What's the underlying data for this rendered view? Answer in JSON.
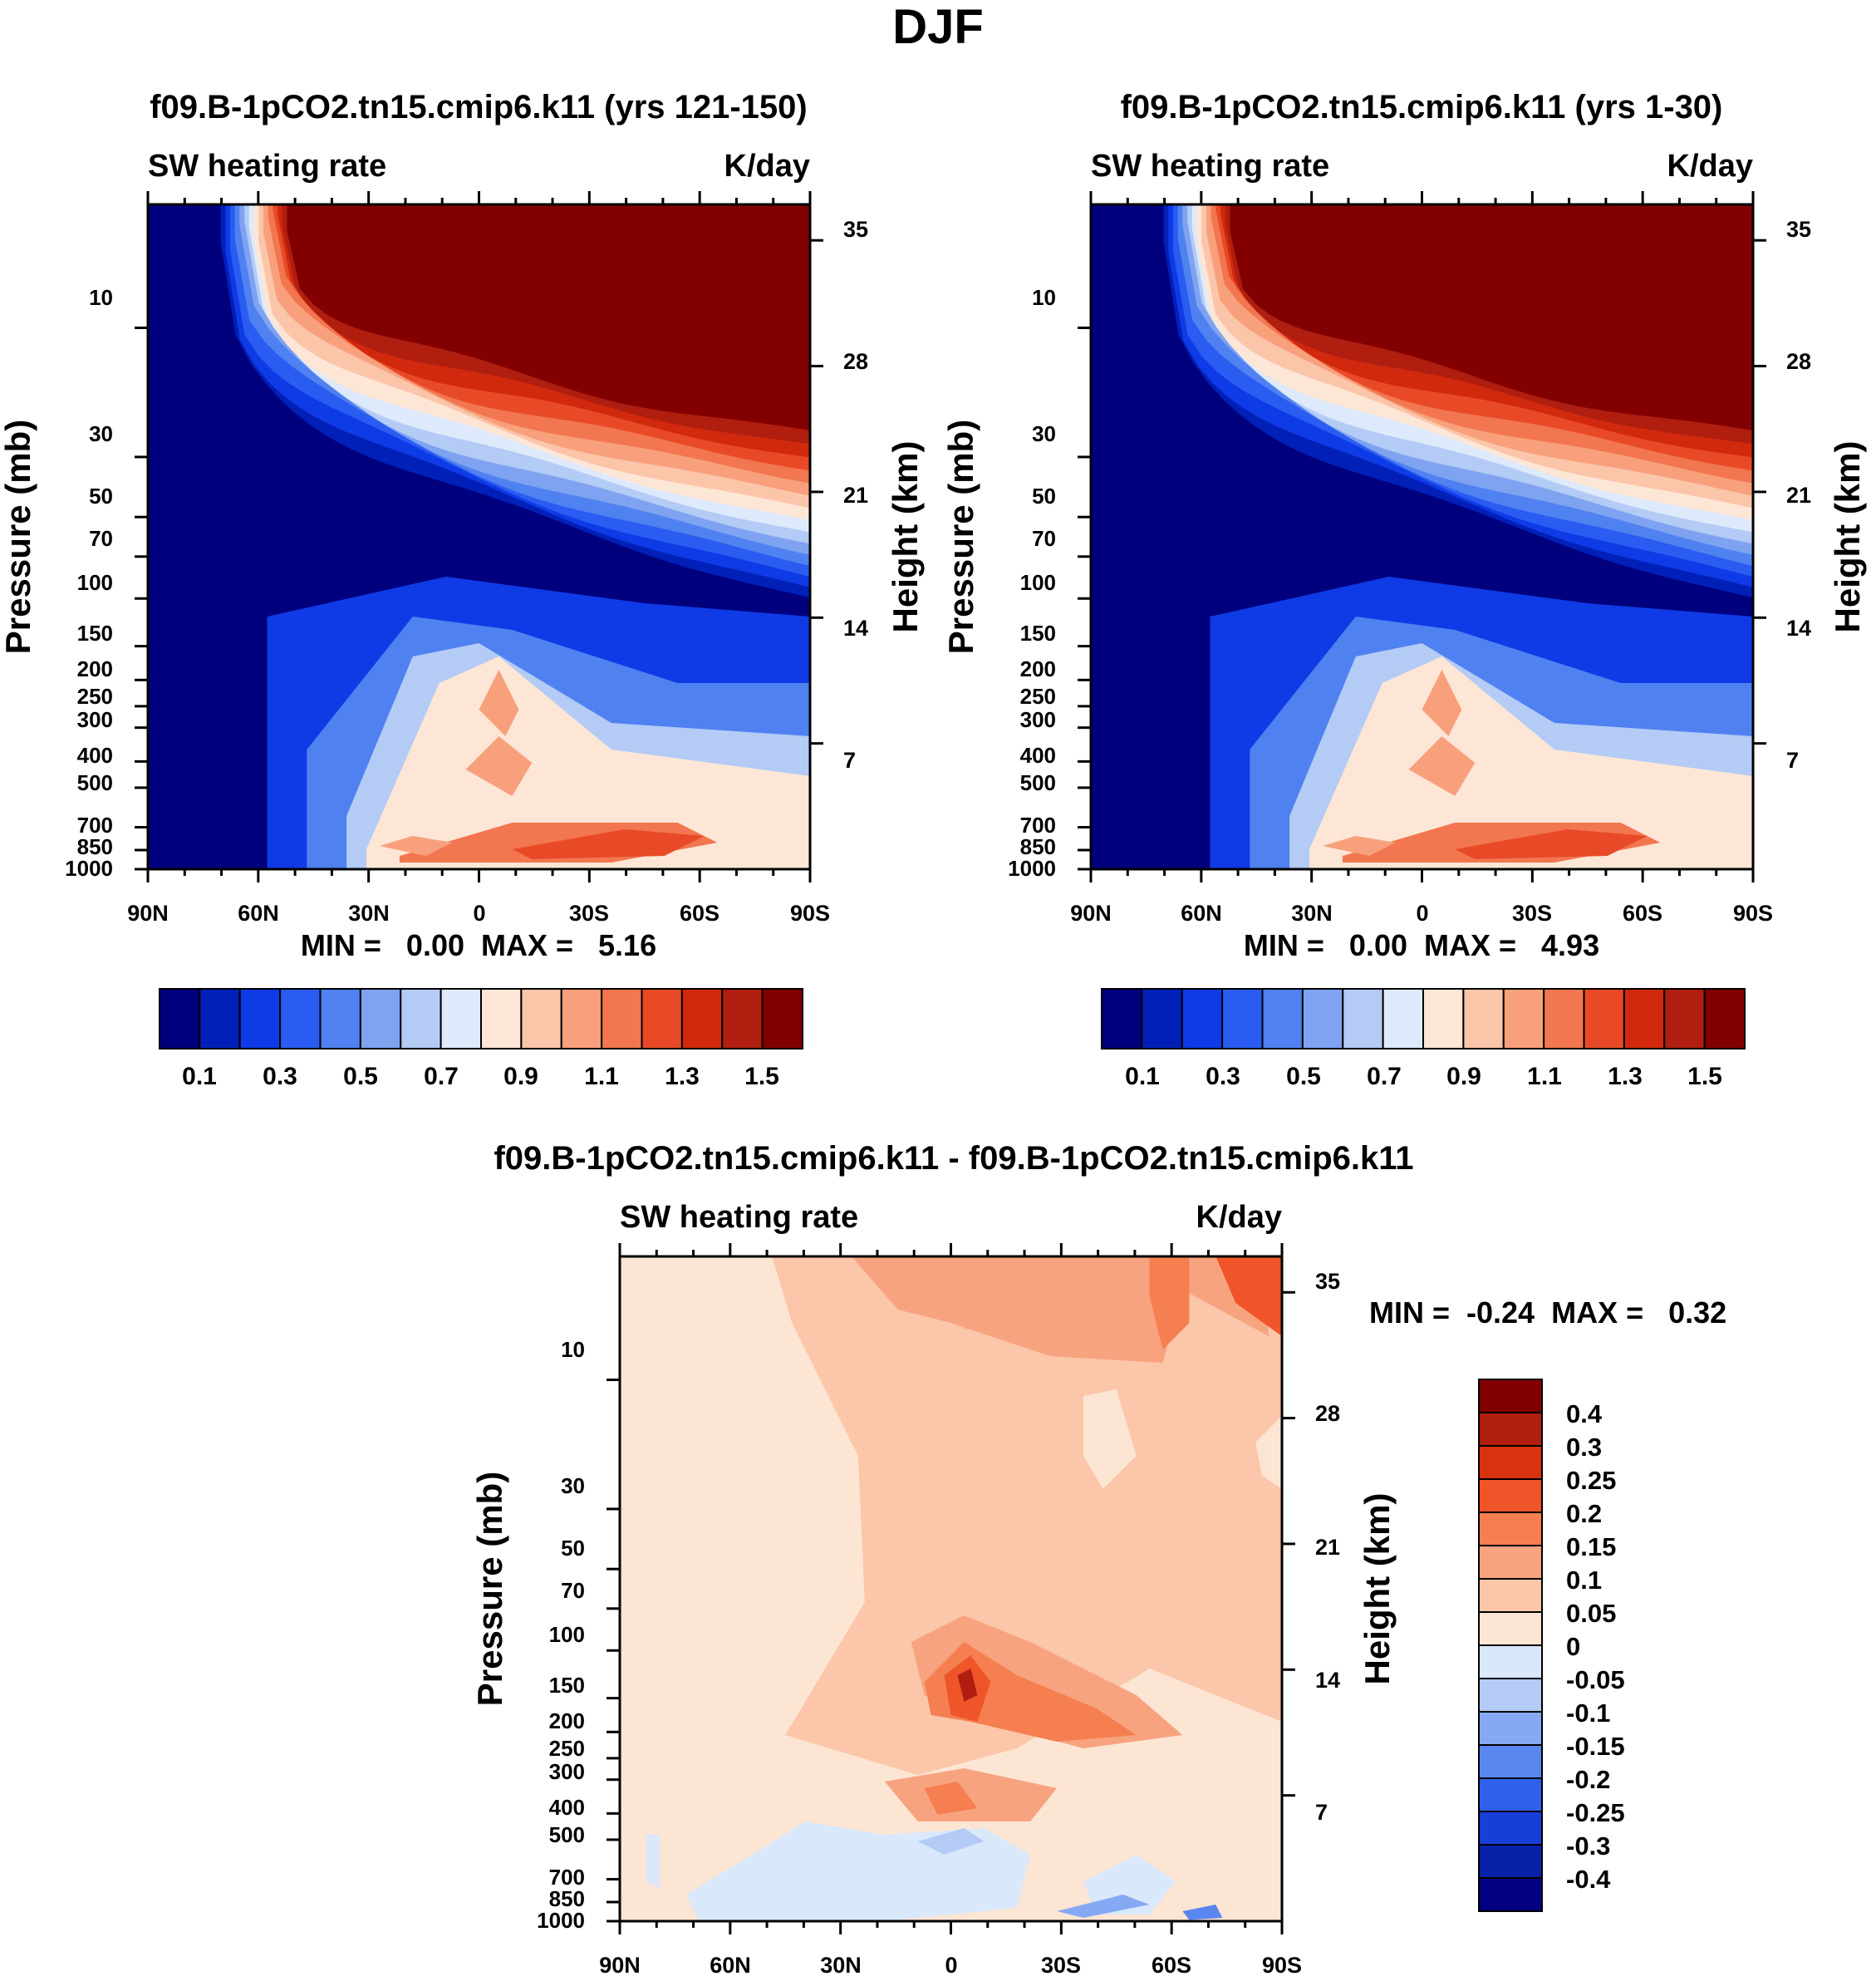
{
  "figure_title": "DJF",
  "chart_data": [
    {
      "type": "contour",
      "id": "p1",
      "title": "f09.B-1pCO2.tn15.cmip6.k11 (yrs 121-150)",
      "subtitle_left": "SW heating rate",
      "subtitle_right": "K/day",
      "ylabel": "Pressure (mb)",
      "ylabel_right": "Height (km)",
      "x_ticklabels": [
        "90N",
        "60N",
        "30N",
        "0",
        "30S",
        "60S",
        "90S"
      ],
      "y_ticklabels": [
        "10",
        "30",
        "50",
        "70",
        "100",
        "150",
        "200",
        "250",
        "300",
        "400",
        "500",
        "700",
        "850",
        "1000"
      ],
      "y_ticks": [
        10,
        30,
        50,
        70,
        100,
        150,
        200,
        250,
        300,
        400,
        500,
        700,
        850,
        1000
      ],
      "height_ticklabels": [
        "35",
        "28",
        "21",
        "14",
        "7"
      ],
      "height_ticks": [
        35,
        28,
        21,
        14,
        7
      ],
      "min_max": "MIN =   0.00  MAX =   5.16",
      "colorbar_levels": [
        "0.1",
        "0.3",
        "0.5",
        "0.7",
        "0.9",
        "1.1",
        "1.3",
        "1.5"
      ],
      "variant": 0
    },
    {
      "type": "contour",
      "id": "p2",
      "title": "f09.B-1pCO2.tn15.cmip6.k11 (yrs 1-30)",
      "subtitle_left": "SW heating rate",
      "subtitle_right": "K/day",
      "ylabel": "Pressure (mb)",
      "ylabel_right": "Height (km)",
      "x_ticklabels": [
        "90N",
        "60N",
        "30N",
        "0",
        "30S",
        "60S",
        "90S"
      ],
      "y_ticklabels": [
        "10",
        "30",
        "50",
        "70",
        "100",
        "150",
        "200",
        "250",
        "300",
        "400",
        "500",
        "700",
        "850",
        "1000"
      ],
      "y_ticks": [
        10,
        30,
        50,
        70,
        100,
        150,
        200,
        250,
        300,
        400,
        500,
        700,
        850,
        1000
      ],
      "height_ticklabels": [
        "35",
        "28",
        "21",
        "14",
        "7"
      ],
      "height_ticks": [
        35,
        28,
        21,
        14,
        7
      ],
      "min_max": "MIN =   0.00  MAX =   4.93",
      "colorbar_levels": [
        "0.1",
        "0.3",
        "0.5",
        "0.7",
        "0.9",
        "1.1",
        "1.3",
        "1.5"
      ],
      "variant": 1
    },
    {
      "type": "contour",
      "id": "p3",
      "title": "f09.B-1pCO2.tn15.cmip6.k11 - f09.B-1pCO2.tn15.cmip6.k11",
      "subtitle_left": "SW heating rate",
      "subtitle_right": "K/day",
      "ylabel": "Pressure (mb)",
      "ylabel_right": "Height (km)",
      "x_ticklabels": [
        "90N",
        "60N",
        "30N",
        "0",
        "30S",
        "60S",
        "90S"
      ],
      "y_ticklabels": [
        "10",
        "30",
        "50",
        "70",
        "100",
        "150",
        "200",
        "250",
        "300",
        "400",
        "500",
        "700",
        "850",
        "1000"
      ],
      "y_ticks": [
        10,
        30,
        50,
        70,
        100,
        150,
        200,
        250,
        300,
        400,
        500,
        700,
        850,
        1000
      ],
      "height_ticklabels": [
        "35",
        "28",
        "21",
        "14",
        "7"
      ],
      "height_ticks": [
        35,
        28,
        21,
        14,
        7
      ],
      "min_max": "MIN =  -0.24  MAX =   0.32",
      "colorbar_levels": [
        "0.4",
        "0.3",
        "0.25",
        "0.2",
        "0.15",
        "0.1",
        "0.05",
        "0",
        "-0.05",
        "-0.1",
        "-0.15",
        "-0.2",
        "-0.25",
        "-0.3",
        "-0.4"
      ]
    }
  ],
  "colors": {
    "seq": [
      "#00007f",
      "#0020b8",
      "#0f3be6",
      "#2a5cf2",
      "#4f81f0",
      "#7fa3f1",
      "#b3cbf5",
      "#deeafb",
      "#fde6d6",
      "#fbc5aa",
      "#f8a07c",
      "#f27650",
      "#e84a27",
      "#d1290d",
      "#b01e10",
      "#820000"
    ],
    "diff": [
      "#820000",
      "#b01e10",
      "#d8320f",
      "#f0552a",
      "#f57f50",
      "#f8a37f",
      "#fbc6a9",
      "#fde5d4",
      "#d9e8fa",
      "#b3cbf5",
      "#86a9f3",
      "#5a86f0",
      "#2f60ec",
      "#173fd8",
      "#0821a8",
      "#000080"
    ]
  }
}
